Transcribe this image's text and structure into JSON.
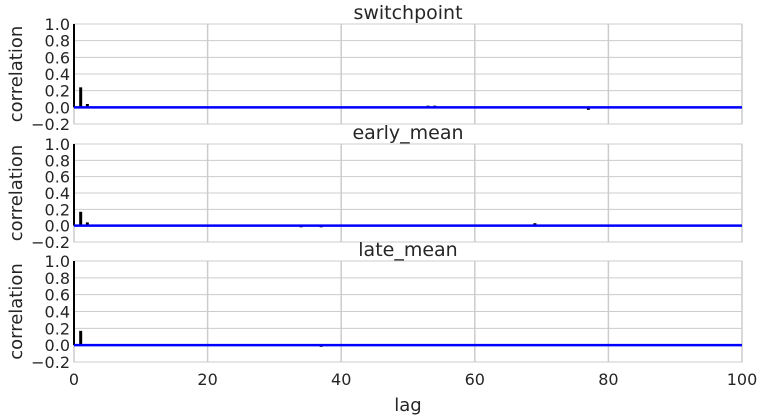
{
  "chart_data": [
    {
      "type": "bar",
      "title": "switchpoint",
      "ylabel": "correlation",
      "xlabel": "",
      "xlim": [
        0,
        100
      ],
      "ylim": [
        -0.2,
        1.0
      ],
      "yticks": [
        "−0.2",
        "0.0",
        "0.2",
        "0.4",
        "0.6",
        "0.8",
        "1.0"
      ],
      "xticks": [
        0,
        20,
        40,
        60,
        80,
        100
      ],
      "grid": true,
      "bar_color": "#000000",
      "zero_line_color": "#0000ff",
      "x": [
        1,
        2,
        3,
        4,
        5,
        6,
        7,
        8,
        9,
        10,
        11,
        12,
        13,
        14,
        15,
        16,
        17,
        18,
        19,
        20,
        21,
        22,
        23,
        24,
        25,
        26,
        27,
        28,
        29,
        30,
        31,
        32,
        33,
        34,
        35,
        36,
        37,
        38,
        39,
        40,
        41,
        42,
        43,
        44,
        45,
        46,
        47,
        48,
        49,
        50,
        51,
        52,
        53,
        54,
        55,
        56,
        57,
        58,
        59,
        60,
        61,
        62,
        63,
        64,
        65,
        66,
        67,
        68,
        69,
        70,
        71,
        72,
        73,
        74,
        75,
        76,
        77,
        78,
        79,
        80,
        81,
        82,
        83,
        84,
        85,
        86,
        87,
        88,
        89,
        90,
        91,
        92,
        93,
        94,
        95,
        96,
        97,
        98,
        99
      ],
      "values": [
        0.24,
        0.04,
        0.0,
        0.0,
        0.0,
        0.0,
        0.0,
        0.0,
        0.0,
        0.0,
        0.0,
        0.0,
        -0.01,
        0.0,
        0.0,
        0.0,
        0.0,
        0.0,
        0.0,
        0.01,
        0.0,
        0.0,
        0.0,
        0.0,
        0.0,
        0.0,
        0.0,
        0.0,
        0.01,
        0.0,
        0.0,
        0.0,
        0.0,
        -0.01,
        0.0,
        0.0,
        0.01,
        0.01,
        0.01,
        0.0,
        0.0,
        0.0,
        0.0,
        0.01,
        0.0,
        0.0,
        0.0,
        0.0,
        0.0,
        0.0,
        0.0,
        0.0,
        0.02,
        0.02,
        0.0,
        0.0,
        0.0,
        0.0,
        0.0,
        0.0,
        0.0,
        0.0,
        0.0,
        0.0,
        0.0,
        0.0,
        0.0,
        0.0,
        0.0,
        0.0,
        0.0,
        0.0,
        0.0,
        0.0,
        0.0,
        0.0,
        -0.03,
        -0.01,
        0.0,
        0.0,
        0.01,
        0.01,
        0.01,
        0.0,
        0.0,
        -0.01,
        0.0,
        0.0,
        0.0,
        0.0,
        0.0,
        0.0,
        0.0,
        0.0,
        0.0,
        0.0,
        0.01,
        0.0,
        0.0
      ]
    },
    {
      "type": "bar",
      "title": "early_mean",
      "ylabel": "correlation",
      "xlabel": "",
      "xlim": [
        0,
        100
      ],
      "ylim": [
        -0.2,
        1.0
      ],
      "yticks": [
        "−0.2",
        "0.0",
        "0.2",
        "0.4",
        "0.6",
        "0.8",
        "1.0"
      ],
      "xticks": [
        0,
        20,
        40,
        60,
        80,
        100
      ],
      "grid": true,
      "bar_color": "#000000",
      "zero_line_color": "#0000ff",
      "x": [
        1,
        2,
        3,
        4,
        5,
        6,
        7,
        8,
        9,
        10,
        11,
        12,
        13,
        14,
        15,
        16,
        17,
        18,
        19,
        20,
        21,
        22,
        23,
        24,
        25,
        26,
        27,
        28,
        29,
        30,
        31,
        32,
        33,
        34,
        35,
        36,
        37,
        38,
        39,
        40,
        41,
        42,
        43,
        44,
        45,
        46,
        47,
        48,
        49,
        50,
        51,
        52,
        53,
        54,
        55,
        56,
        57,
        58,
        59,
        60,
        61,
        62,
        63,
        64,
        65,
        66,
        67,
        68,
        69,
        70,
        71,
        72,
        73,
        74,
        75,
        76,
        77,
        78,
        79,
        80,
        81,
        82,
        83,
        84,
        85,
        86,
        87,
        88,
        89,
        90,
        91,
        92,
        93,
        94,
        95,
        96,
        97,
        98,
        99
      ],
      "values": [
        0.17,
        0.04,
        0.0,
        0.0,
        0.0,
        0.01,
        0.0,
        0.0,
        0.0,
        0.0,
        0.0,
        0.0,
        0.0,
        0.0,
        -0.01,
        0.0,
        0.0,
        0.0,
        0.0,
        0.0,
        0.0,
        0.0,
        0.0,
        0.0,
        0.0,
        0.0,
        0.0,
        0.0,
        0.0,
        0.0,
        0.0,
        0.0,
        -0.01,
        -0.02,
        0.0,
        0.0,
        -0.02,
        0.0,
        0.0,
        0.0,
        0.0,
        0.0,
        0.0,
        0.0,
        0.0,
        0.0,
        0.0,
        0.0,
        0.0,
        0.01,
        0.0,
        0.0,
        0.0,
        0.0,
        0.0,
        0.0,
        0.0,
        0.0,
        0.0,
        0.0,
        0.0,
        0.0,
        0.0,
        0.0,
        0.0,
        0.0,
        0.0,
        0.0,
        0.03,
        0.0,
        0.01,
        0.0,
        0.0,
        0.0,
        0.01,
        0.0,
        0.0,
        0.01,
        0.0,
        0.0,
        0.0,
        0.0,
        0.0,
        0.0,
        0.0,
        -0.01,
        0.0,
        0.0,
        0.0,
        0.0,
        0.0,
        0.0,
        0.0,
        0.0,
        0.0,
        0.0,
        0.0,
        0.0,
        0.01
      ]
    },
    {
      "type": "bar",
      "title": "late_mean",
      "ylabel": "correlation",
      "xlabel": "lag",
      "xlim": [
        0,
        100
      ],
      "ylim": [
        -0.2,
        1.0
      ],
      "yticks": [
        "−0.2",
        "0.0",
        "0.2",
        "0.4",
        "0.6",
        "0.8",
        "1.0"
      ],
      "xticks": [
        0,
        20,
        40,
        60,
        80,
        100
      ],
      "grid": true,
      "bar_color": "#000000",
      "zero_line_color": "#0000ff",
      "x": [
        1,
        2,
        3,
        4,
        5,
        6,
        7,
        8,
        9,
        10,
        11,
        12,
        13,
        14,
        15,
        16,
        17,
        18,
        19,
        20,
        21,
        22,
        23,
        24,
        25,
        26,
        27,
        28,
        29,
        30,
        31,
        32,
        33,
        34,
        35,
        36,
        37,
        38,
        39,
        40,
        41,
        42,
        43,
        44,
        45,
        46,
        47,
        48,
        49,
        50,
        51,
        52,
        53,
        54,
        55,
        56,
        57,
        58,
        59,
        60,
        61,
        62,
        63,
        64,
        65,
        66,
        67,
        68,
        69,
        70,
        71,
        72,
        73,
        74,
        75,
        76,
        77,
        78,
        79,
        80,
        81,
        82,
        83,
        84,
        85,
        86,
        87,
        88,
        89,
        90,
        91,
        92,
        93,
        94,
        95,
        96,
        97,
        98,
        99
      ],
      "values": [
        0.17,
        0.01,
        0.0,
        0.0,
        0.0,
        0.0,
        0.0,
        0.0,
        0.0,
        0.0,
        0.0,
        0.0,
        0.0,
        0.0,
        0.0,
        0.0,
        0.0,
        0.0,
        0.0,
        0.0,
        0.01,
        0.0,
        0.0,
        0.0,
        0.0,
        0.0,
        0.0,
        0.0,
        0.0,
        0.0,
        0.0,
        0.0,
        0.0,
        0.0,
        0.01,
        0.0,
        -0.02,
        -0.01,
        0.0,
        0.0,
        0.0,
        0.0,
        0.0,
        0.0,
        -0.01,
        0.0,
        0.0,
        0.0,
        0.0,
        0.0,
        0.0,
        0.0,
        0.0,
        0.0,
        0.0,
        0.0,
        0.0,
        0.0,
        0.0,
        0.0,
        0.0,
        0.0,
        0.0,
        0.0,
        0.0,
        0.0,
        0.0,
        0.0,
        0.0,
        -0.01,
        0.0,
        0.0,
        0.0,
        0.01,
        0.0,
        0.0,
        0.0,
        0.0,
        0.0,
        0.0,
        0.0,
        0.0,
        0.0,
        0.0,
        0.0,
        0.0,
        0.0,
        0.0,
        0.0,
        0.0,
        0.0,
        0.0,
        0.0,
        0.0,
        0.0,
        0.0,
        0.0,
        0.01,
        0.0
      ]
    }
  ]
}
